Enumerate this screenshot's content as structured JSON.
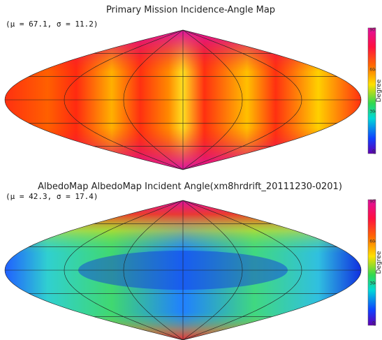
{
  "panels": [
    {
      "title": "Primary Mission Incidence-Angle Map",
      "stats": "(μ = 67.1, σ = 11.2)",
      "colorbar": {
        "label": "Degree",
        "lim": [
          0,
          90
        ],
        "ticks": [
          0,
          30,
          60,
          90
        ]
      }
    },
    {
      "title": "AlbedoMap AlbedoMap Incident Angle(xm8hrdrift_20111230-0201)",
      "stats": "(μ = 42.3, σ = 17.4)",
      "colorbar": {
        "label": "Degree",
        "lim": [
          0,
          90
        ],
        "ticks": [
          0,
          30,
          60,
          90
        ]
      }
    }
  ]
}
